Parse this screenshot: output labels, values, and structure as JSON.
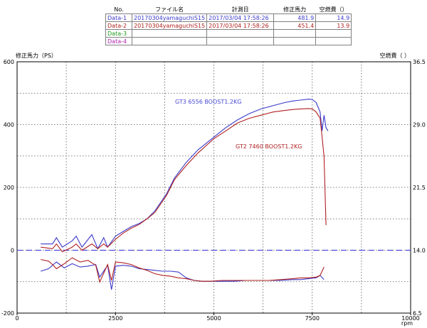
{
  "table": {
    "headers": [
      "No.",
      "ファイル名",
      "計測日",
      "修正馬力",
      "空燃費（）"
    ],
    "rows": [
      {
        "no": "Data-1",
        "file": "20170304yamaguchiS15",
        "date": "2017/03/04  17:58:26",
        "power": "481.9",
        "afr": "14.9",
        "color": "#3a3acc"
      },
      {
        "no": "Data-2",
        "file": "20170304yamaguchiS15",
        "date": "2017/03/04  17:58:26",
        "power": "451.4",
        "afr": "13.9",
        "color": "#b02020"
      },
      {
        "no": "Data-3",
        "file": "",
        "date": "",
        "power": "",
        "afr": "",
        "color": "#1a9a1a"
      },
      {
        "no": "Data-4",
        "file": "",
        "date": "",
        "power": "",
        "afr": "",
        "color": "#b020b0"
      }
    ]
  },
  "chart_data": {
    "type": "line",
    "ylabel_left": "修正馬力（PS）",
    "ylabel_right": "空燃費（ ）",
    "xlabel": "rpm",
    "xlim": [
      0,
      10000
    ],
    "ylim_left": [
      -200,
      600
    ],
    "ylim_right": [
      6.5,
      36.5
    ],
    "x_ticks": [
      0,
      2500,
      5000,
      7500,
      10000
    ],
    "y_ticks_left": [
      -200,
      0,
      200,
      400,
      600
    ],
    "y_ticks_right": [
      6.5,
      14.0,
      21.5,
      29.0,
      36.5
    ],
    "reference_line_afr": 14.0,
    "annotations": [
      {
        "text": "GT3 6556 BOOST1.2KG",
        "series": "Data-1"
      },
      {
        "text": "GT2 7460 BOOST1.2KG",
        "series": "Data-2"
      }
    ],
    "series": [
      {
        "name": "Data-1",
        "kind": "power",
        "color": "#3a3acc",
        "x": [
          600,
          900,
          1000,
          1150,
          1400,
          1500,
          1650,
          1900,
          2050,
          2200,
          2300,
          2500,
          2700,
          2900,
          3100,
          3300,
          3500,
          3800,
          4000,
          4300,
          4600,
          5000,
          5300,
          5600,
          5900,
          6200,
          6500,
          6800,
          7000,
          7200,
          7400,
          7500,
          7600,
          7700,
          7750,
          7800,
          7850,
          7900
        ],
        "y": [
          20,
          20,
          40,
          10,
          30,
          45,
          10,
          50,
          5,
          40,
          10,
          45,
          60,
          75,
          85,
          100,
          125,
          180,
          230,
          280,
          320,
          360,
          390,
          415,
          435,
          450,
          460,
          470,
          475,
          478,
          481,
          480,
          470,
          440,
          380,
          430,
          390,
          380
        ]
      },
      {
        "name": "Data-2",
        "kind": "power",
        "color": "#b02020",
        "x": [
          600,
          900,
          1000,
          1150,
          1400,
          1500,
          1650,
          1900,
          2050,
          2200,
          2300,
          2500,
          2700,
          2900,
          3100,
          3300,
          3500,
          3800,
          4000,
          4300,
          4600,
          5000,
          5300,
          5600,
          5900,
          6200,
          6500,
          6800,
          7000,
          7200,
          7400,
          7500,
          7600,
          7700,
          7750,
          7800,
          7850
        ],
        "y": [
          10,
          5,
          20,
          -5,
          10,
          20,
          0,
          20,
          5,
          20,
          10,
          35,
          55,
          70,
          82,
          100,
          120,
          175,
          225,
          270,
          310,
          355,
          380,
          405,
          420,
          430,
          440,
          445,
          448,
          450,
          451,
          450,
          440,
          420,
          360,
          300,
          80
        ]
      },
      {
        "name": "Data-1",
        "kind": "afr",
        "color": "#3a3acc",
        "x": [
          600,
          800,
          1000,
          1200,
          1400,
          1600,
          1800,
          2000,
          2100,
          2300,
          2400,
          2500,
          2700,
          2900,
          3100,
          3300,
          3500,
          3700,
          3900,
          4100,
          4300,
          4500,
          4700,
          4900,
          5200,
          5500,
          5800,
          6100,
          6400,
          6700,
          7000,
          7200,
          7400,
          7600,
          7700,
          7800
        ],
        "y": [
          11.5,
          11.8,
          12.6,
          11.9,
          12.4,
          12.0,
          12.1,
          12.3,
          10.8,
          12.2,
          9.3,
          12.1,
          12.2,
          12.1,
          11.8,
          11.7,
          11.6,
          11.5,
          11.5,
          11.4,
          10.7,
          10.4,
          10.3,
          10.3,
          10.3,
          10.3,
          10.4,
          10.4,
          10.4,
          10.4,
          10.5,
          10.5,
          10.6,
          10.7,
          11.0,
          10.5
        ]
      },
      {
        "name": "Data-2",
        "kind": "afr",
        "color": "#b02020",
        "x": [
          600,
          800,
          900,
          1000,
          1200,
          1400,
          1600,
          1800,
          2000,
          2100,
          2300,
          2400,
          2500,
          2700,
          2900,
          3100,
          3300,
          3500,
          3700,
          3900,
          4100,
          4300,
          4500,
          4700,
          4900,
          5200,
          5500,
          5800,
          6100,
          6400,
          6700,
          7000,
          7200,
          7400,
          7600,
          7700,
          7800
        ],
        "y": [
          12.9,
          12.7,
          12.3,
          11.8,
          12.4,
          13.1,
          12.6,
          12.8,
          12.2,
          10.2,
          12.3,
          10.4,
          12.6,
          12.5,
          12.3,
          11.9,
          11.6,
          11.2,
          11.0,
          10.9,
          10.7,
          10.6,
          10.4,
          10.3,
          10.3,
          10.4,
          10.4,
          10.4,
          10.4,
          10.4,
          10.5,
          10.6,
          10.7,
          10.7,
          10.8,
          11.0,
          12.0
        ]
      }
    ]
  }
}
